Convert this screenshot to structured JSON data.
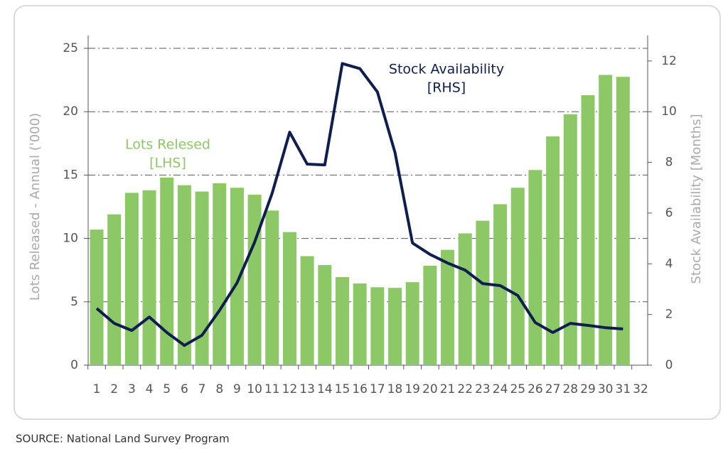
{
  "chart_data": {
    "type": "bar_line",
    "categories": [
      "1",
      "2",
      "3",
      "4",
      "5",
      "6",
      "7",
      "8",
      "9",
      "10",
      "11",
      "12",
      "13",
      "14",
      "15",
      "16",
      "17",
      "18",
      "19",
      "20",
      "21",
      "22",
      "23",
      "24",
      "25",
      "26",
      "27",
      "28",
      "29",
      "30",
      "31",
      "32"
    ],
    "series": [
      {
        "name": "Lots Relesed",
        "color": "#8cc866",
        "type": "bar",
        "axis": "y",
        "values": [
          10.7,
          11.9,
          13.6,
          13.8,
          14.8,
          14.2,
          13.7,
          14.35,
          14.0,
          13.45,
          12.2,
          10.5,
          8.6,
          7.9,
          6.95,
          6.45,
          6.15,
          6.1,
          6.55,
          7.85,
          9.1,
          10.4,
          11.4,
          12.7,
          14.0,
          15.4,
          18.05,
          19.8,
          21.3,
          22.9,
          22.75,
          null
        ]
      },
      {
        "name": "Stock Availability",
        "color": "#0e1e4e",
        "type": "line",
        "axis": "y2",
        "values": [
          2.24,
          1.65,
          1.37,
          1.9,
          1.29,
          0.78,
          1.18,
          2.16,
          3.25,
          4.85,
          6.78,
          9.19,
          7.93,
          7.9,
          11.9,
          11.7,
          10.78,
          8.4,
          4.82,
          4.37,
          4.03,
          3.75,
          3.22,
          3.14,
          2.75,
          1.68,
          1.29,
          1.65,
          1.57,
          1.48,
          1.43,
          null
        ]
      }
    ],
    "annotations": [
      {
        "text": "Lots Relesed",
        "sub": "[LHS]"
      },
      {
        "text": "Stock Availability",
        "sub": "[RHS]"
      }
    ],
    "ylabel": "Lots Released - Annual ('000)",
    "y2label": "Stock Availability [Months]",
    "ylim": [
      0,
      25
    ],
    "yticks": [
      0,
      5,
      10,
      15,
      20,
      25
    ],
    "y2lim": [
      0,
      12.5
    ],
    "y2ticks": [
      0,
      2,
      4,
      6,
      8,
      10,
      12
    ],
    "grid": true,
    "source": "SOURCE: National Land Survey Program"
  }
}
